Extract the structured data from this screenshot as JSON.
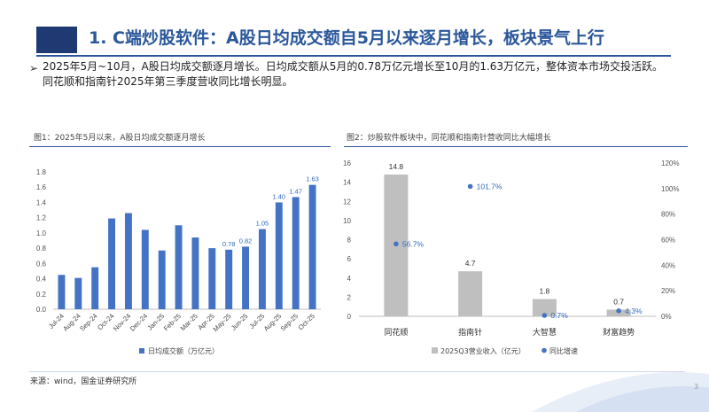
{
  "header": {
    "title": "1. C端炒股软件：A股日均成交额自5月以来逐月增长，板块景气上行"
  },
  "bullet": {
    "symbol": "➢",
    "text": "2025年5月~10月，A股日均成交额逐月增长。日均成交额从5月的0.78万亿元增长至10月的1.63万亿元，整体资本市场交投活跃。同花顺和指南针2025年第三季度营收同比增长明显。"
  },
  "footer": {
    "source": "来源：wind，国金证券研究所",
    "page": "3"
  },
  "colors": {
    "brand": "#2b579a",
    "dark_block": "#1f3a73",
    "bar_blue": "#4472c4",
    "bar_gray": "#bfbfbf",
    "dot_blue": "#4472c4"
  },
  "chart_data": [
    {
      "type": "bar",
      "title": "图1：2025年5月以来，A股日均成交额逐月增长",
      "categories": [
        "Jul-24",
        "Aug-24",
        "Sep-24",
        "Oct-24",
        "Nov-24",
        "Dec-24",
        "Jan-25",
        "Feb-25",
        "Mar-25",
        "Apr-25",
        "May-25",
        "Jun-25",
        "Jul-25",
        "Aug-25",
        "Sep-25",
        "Oct-25"
      ],
      "values": [
        0.45,
        0.41,
        0.55,
        1.19,
        1.26,
        1.04,
        0.77,
        1.1,
        0.94,
        0.8,
        0.78,
        0.82,
        1.05,
        1.4,
        1.47,
        1.63
      ],
      "labeled": [
        false,
        false,
        false,
        false,
        false,
        false,
        false,
        false,
        false,
        false,
        true,
        true,
        true,
        true,
        true,
        true
      ],
      "data_labels": [
        "",
        "",
        "",
        "",
        "",
        "",
        "",
        "",
        "",
        "",
        "0.78",
        "0.82",
        "1.05",
        "1.40",
        "1.47",
        "1.63"
      ],
      "ylim": [
        0,
        1.8
      ],
      "yticks": [
        "0.0",
        "0.2",
        "0.4",
        "0.6",
        "0.8",
        "1.0",
        "1.2",
        "1.4",
        "1.6",
        "1.8"
      ],
      "legend": "日均成交额（万亿元）",
      "legend_position": "bottom"
    },
    {
      "type": "bar+scatter",
      "title": "图2：炒股软件板块中，同花顺和指南针营收同比大幅增长",
      "categories": [
        "同花顺",
        "指南针",
        "大智慧",
        "财富趋势"
      ],
      "series": [
        {
          "name": "2025Q3营业收入（亿元）",
          "values": [
            14.8,
            4.7,
            1.8,
            0.7
          ],
          "labels": [
            "14.8",
            "4.7",
            "1.8",
            "0.7"
          ],
          "axis": "left"
        },
        {
          "name": "同比增速",
          "values": [
            56.7,
            101.7,
            0.7,
            4.3
          ],
          "labels": [
            "56.7%",
            "101.7%",
            "0.7%",
            "4.3%"
          ],
          "axis": "right"
        }
      ],
      "ylim_left": [
        0,
        16
      ],
      "yticks_left": [
        "0",
        "2",
        "4",
        "6",
        "8",
        "10",
        "12",
        "14",
        "16"
      ],
      "ylim_right": [
        0,
        120
      ],
      "yticks_right": [
        "0%",
        "20%",
        "40%",
        "60%",
        "80%",
        "100%",
        "120%"
      ],
      "legend_position": "bottom"
    }
  ]
}
